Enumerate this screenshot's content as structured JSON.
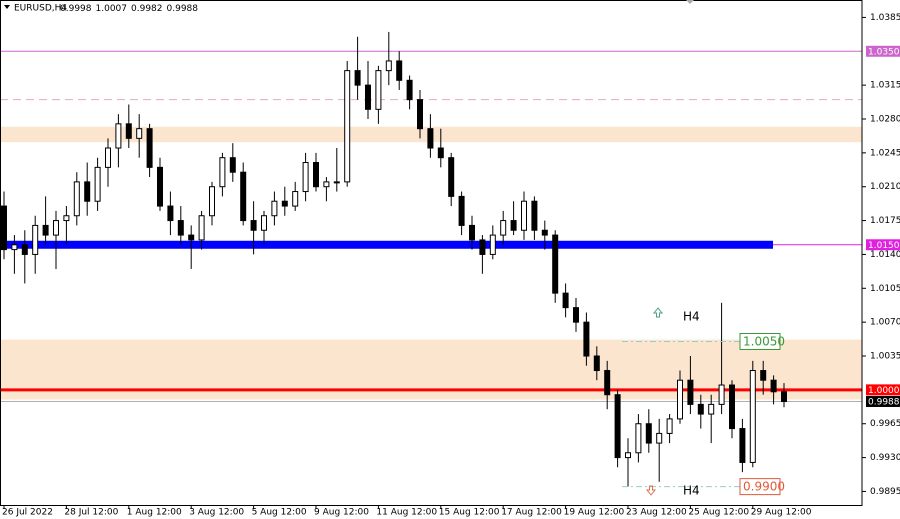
{
  "chart_data": {
    "type": "candlestick",
    "symbol": "EURUSD,H4",
    "quote": [
      0.9998,
      1.0007,
      0.9982,
      0.9988
    ],
    "categories": [
      "26 Jul 2022",
      null,
      null,
      null,
      null,
      null,
      "28 Jul 12:00",
      null,
      null,
      null,
      null,
      null,
      "1 Aug 12:00",
      null,
      null,
      null,
      null,
      null,
      "3 Aug 12:00",
      null,
      null,
      null,
      null,
      null,
      "5 Aug 12:00",
      null,
      null,
      null,
      null,
      null,
      "9 Aug 12:00",
      null,
      null,
      null,
      null,
      null,
      "11 Aug 12:00",
      null,
      null,
      null,
      null,
      null,
      "15 Aug 12:00",
      null,
      null,
      null,
      null,
      null,
      "17 Aug 12:00",
      null,
      null,
      null,
      null,
      null,
      "19 Aug 12:00",
      null,
      null,
      null,
      null,
      null,
      "23 Aug 12:00",
      null,
      null,
      null,
      null,
      null,
      "25 Aug 12:00",
      null,
      null,
      null,
      null,
      null,
      "29 Aug 12:00",
      null,
      null,
      null
    ],
    "open": [
      1.019,
      1.0145,
      1.015,
      1.014,
      1.017,
      1.016,
      1.0175,
      1.018,
      1.0215,
      1.0195,
      1.023,
      1.025,
      1.0275,
      1.026,
      1.027,
      1.023,
      1.019,
      1.0175,
      1.016,
      1.0155,
      1.018,
      1.021,
      1.024,
      1.0225,
      1.0175,
      1.0165,
      1.018,
      1.0195,
      1.019,
      1.0205,
      1.0235,
      1.021,
      1.0215,
      1.0215,
      1.033,
      1.0315,
      1.029,
      1.033,
      1.034,
      1.032,
      1.03,
      1.027,
      1.025,
      1.024,
      1.02,
      1.017,
      1.0155,
      1.014,
      1.016,
      1.0175,
      1.0165,
      1.0195,
      1.0165,
      1.016,
      1.01,
      1.0085,
      1.007,
      1.0035,
      1.002,
      0.9995,
      0.993,
      0.9935,
      0.9965,
      0.9945,
      0.9955,
      0.997,
      1.001,
      0.9985,
      0.9975,
      0.9985,
      1.0005,
      0.996,
      0.9925,
      1.002,
      1.001,
      0.9998
    ],
    "high": [
      1.0205,
      1.016,
      1.0165,
      1.018,
      1.02,
      1.0185,
      1.019,
      1.0225,
      1.0235,
      1.024,
      1.026,
      1.0285,
      1.0295,
      1.0285,
      1.0275,
      1.024,
      1.0205,
      1.019,
      1.017,
      1.0185,
      1.0215,
      1.0245,
      1.0255,
      1.0235,
      1.0195,
      1.0185,
      1.0205,
      1.021,
      1.0215,
      1.0245,
      1.0245,
      1.022,
      1.025,
      1.034,
      1.0365,
      1.034,
      1.0335,
      1.037,
      1.035,
      1.0325,
      1.031,
      1.0285,
      1.027,
      1.0245,
      1.0205,
      1.018,
      1.016,
      1.017,
      1.0185,
      1.0195,
      1.0205,
      1.02,
      1.0175,
      1.0165,
      1.011,
      1.0095,
      1.008,
      1.0045,
      1.003,
      1.0,
      0.995,
      0.9975,
      0.998,
      0.997,
      0.9975,
      1.002,
      1.0035,
      0.9995,
      0.9995,
      1.009,
      1.001,
      0.997,
      1.003,
      1.003,
      1.0015,
      1.0007
    ],
    "low": [
      1.0135,
      1.012,
      1.011,
      1.012,
      1.015,
      1.0125,
      1.015,
      1.017,
      1.018,
      1.0185,
      1.021,
      1.023,
      1.025,
      1.024,
      1.022,
      1.0185,
      1.016,
      1.015,
      1.0125,
      1.0145,
      1.017,
      1.02,
      1.0215,
      1.017,
      1.014,
      1.015,
      1.017,
      1.018,
      1.0185,
      1.0195,
      1.0205,
      1.0195,
      1.0205,
      1.021,
      1.03,
      1.028,
      1.0275,
      1.0315,
      1.031,
      1.029,
      1.026,
      1.024,
      1.023,
      1.019,
      1.016,
      1.0145,
      1.012,
      1.0135,
      1.015,
      1.016,
      1.0155,
      1.0155,
      1.0145,
      1.009,
      1.0075,
      1.006,
      1.0025,
      1.001,
      0.998,
      0.992,
      0.99,
      0.9925,
      0.9935,
      0.9905,
      0.9945,
      0.9965,
      0.9975,
      0.996,
      0.9945,
      0.9975,
      0.995,
      0.9915,
      0.992,
      0.9995,
      0.9985,
      0.9982
    ],
    "close": [
      1.0145,
      1.015,
      1.014,
      1.017,
      1.016,
      1.0175,
      1.018,
      1.0215,
      1.0195,
      1.023,
      1.025,
      1.0275,
      1.026,
      1.027,
      1.023,
      1.019,
      1.0175,
      1.016,
      1.0155,
      1.018,
      1.021,
      1.024,
      1.0225,
      1.0175,
      1.0165,
      1.018,
      1.0195,
      1.019,
      1.0205,
      1.0235,
      1.021,
      1.0215,
      1.0215,
      1.033,
      1.0315,
      1.029,
      1.033,
      1.034,
      1.032,
      1.03,
      1.027,
      1.025,
      1.024,
      1.02,
      1.017,
      1.0155,
      1.014,
      1.016,
      1.0175,
      1.0165,
      1.0195,
      1.0165,
      1.016,
      1.01,
      1.0085,
      1.007,
      1.0035,
      1.002,
      0.9995,
      0.993,
      0.9935,
      0.9965,
      0.9945,
      0.9955,
      0.997,
      1.001,
      0.9985,
      0.9975,
      0.9985,
      1.0005,
      0.996,
      0.9925,
      1.002,
      1.001,
      0.9998,
      0.9988
    ],
    "ylim": [
      0.9881,
      1.0403
    ],
    "yticks": [
      1.0385,
      1.0315,
      {
        "value": 1.028,
        "label": "1.0280"
      },
      1.0245,
      {
        "value": 1.021,
        "label": "1.0210"
      },
      1.0175,
      {
        "value": 1.014,
        "label": "1.0140"
      },
      1.0105,
      {
        "value": 1.007,
        "label": "1.0070"
      },
      1.0035,
      0.9965,
      {
        "value": 0.993,
        "label": "0.9930"
      },
      0.9895
    ],
    "zones": [
      {
        "from": 1.0256,
        "to": 1.0272,
        "color": "#fbe5cf"
      },
      {
        "from": 0.999,
        "to": 1.0052,
        "color": "#fbe5cf"
      }
    ],
    "levels": [
      {
        "value": 1.035,
        "label": "1.0350",
        "color": "#cc66cc",
        "style": "solid",
        "width": 1
      },
      {
        "value": 1.03,
        "color": "#e8a8c8",
        "style": "dashed",
        "width": 1
      },
      {
        "value": 1.015,
        "label": "1.0150",
        "color": "#e020e0",
        "style": "solid",
        "width": 1
      },
      {
        "value": 1.0,
        "label": "1.0000",
        "color": "#ff0000",
        "style": "solid",
        "width": 3
      },
      {
        "value": 0.9988,
        "label": "0.9988",
        "color": "#000000",
        "style": "price",
        "width": 1
      }
    ],
    "band": {
      "value": 1.015,
      "color": "#0000ff"
    },
    "targets": [
      {
        "value": 1.005,
        "label": "1.0050",
        "color": "#3a9a3a",
        "text": "H4"
      },
      {
        "value": 0.99,
        "label": "0.9900",
        "color": "#e05a3a",
        "text": "H4"
      }
    ]
  }
}
